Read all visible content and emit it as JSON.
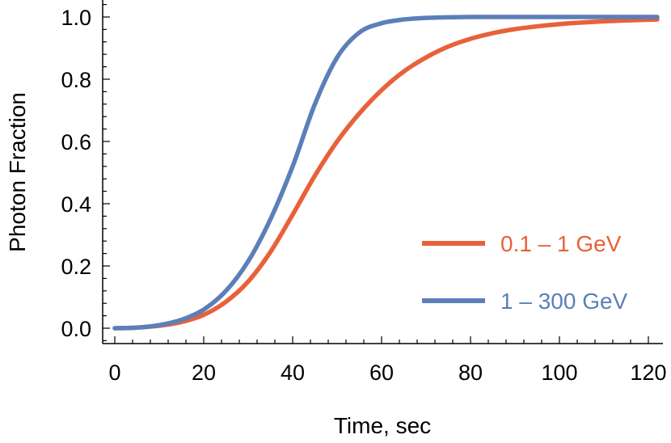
{
  "chart_data": {
    "type": "line",
    "title": "",
    "xlabel": "Time, sec",
    "ylabel": "Photon Fraction",
    "xlim": [
      -2,
      123
    ],
    "ylim": [
      -0.05,
      1.05
    ],
    "x_ticks": [
      0,
      20,
      40,
      60,
      80,
      100,
      120
    ],
    "y_ticks": [
      0.0,
      0.2,
      0.4,
      0.6,
      0.8,
      1.0
    ],
    "x_tick_labels": [
      "0",
      "20",
      "40",
      "60",
      "80",
      "100",
      "120"
    ],
    "y_tick_labels": [
      "0.0",
      "0.2",
      "0.4",
      "0.6",
      "0.8",
      "1.0"
    ],
    "grid": false,
    "legend_position": "bottom-right",
    "x": [
      0,
      5,
      10,
      15,
      20,
      25,
      30,
      35,
      40,
      45,
      50,
      55,
      60,
      65,
      70,
      75,
      80,
      85,
      90,
      95,
      100,
      105,
      110,
      115,
      122
    ],
    "series": [
      {
        "name": "0.1 – 1 GeV",
        "color": "#e8613a",
        "values": [
          0.0,
          0.002,
          0.008,
          0.02,
          0.043,
          0.085,
          0.15,
          0.245,
          0.365,
          0.49,
          0.6,
          0.69,
          0.765,
          0.825,
          0.87,
          0.905,
          0.93,
          0.948,
          0.961,
          0.97,
          0.977,
          0.982,
          0.986,
          0.989,
          0.992
        ]
      },
      {
        "name": "1 – 300 GeV",
        "color": "#5b7fb8",
        "values": [
          0.0,
          0.002,
          0.01,
          0.027,
          0.06,
          0.12,
          0.215,
          0.35,
          0.52,
          0.72,
          0.87,
          0.95,
          0.98,
          0.992,
          0.997,
          0.999,
          1.0,
          1.0,
          1.0,
          1.0,
          1.0,
          1.0,
          1.0,
          1.0,
          1.0
        ]
      }
    ]
  }
}
